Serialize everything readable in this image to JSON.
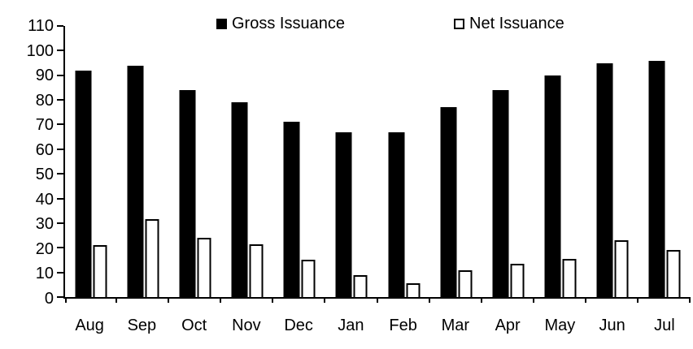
{
  "chart_data": {
    "type": "bar",
    "categories": [
      "Aug",
      "Sep",
      "Oct",
      "Nov",
      "Dec",
      "Jan",
      "Feb",
      "Mar",
      "Apr",
      "May",
      "Jun",
      "Jul"
    ],
    "series": [
      {
        "name": "Gross Issuance",
        "values": [
          92,
          94,
          84,
          79,
          71,
          67,
          67,
          77,
          84,
          90,
          95,
          96
        ],
        "fill": "#000000",
        "border": "#000000"
      },
      {
        "name": "Net Issuance",
        "values": [
          21,
          31.5,
          24,
          21.5,
          15,
          9,
          5.5,
          11,
          13.5,
          15.5,
          23,
          19
        ],
        "fill": "#ffffff",
        "border": "#000000"
      }
    ],
    "title": "",
    "xlabel": "",
    "ylabel": "",
    "ylim": [
      0,
      110
    ],
    "yticks": [
      0,
      10,
      20,
      30,
      40,
      50,
      60,
      70,
      80,
      90,
      100,
      110
    ],
    "grid": false,
    "legend_position": "top",
    "axis_color": "#000000",
    "background_color": "#ffffff"
  }
}
